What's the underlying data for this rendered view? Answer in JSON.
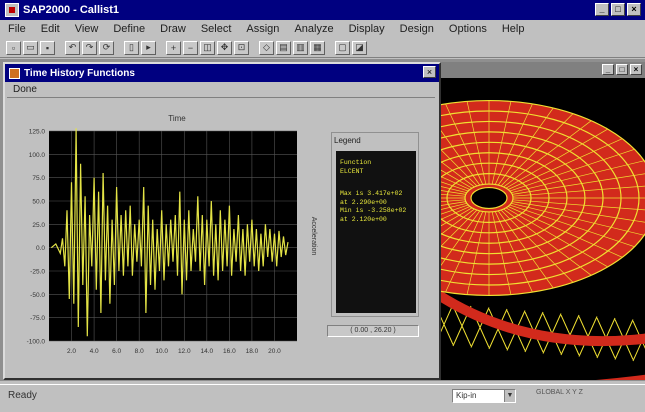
{
  "app": {
    "title": "SAP2000 - Callist1"
  },
  "menu": [
    "File",
    "Edit",
    "View",
    "Define",
    "Draw",
    "Select",
    "Assign",
    "Analyze",
    "Display",
    "Design",
    "Options",
    "Help"
  ],
  "th_window": {
    "title": "Time History Functions",
    "menu_label": "Done"
  },
  "chart_data": {
    "type": "line",
    "title": "Time",
    "xlabel": "",
    "ylabel": "Acceleration",
    "xlim": [
      0,
      22
    ],
    "ylim": [
      -100,
      125
    ],
    "x_ticks": [
      "2.0",
      "4.0",
      "6.0",
      "8.0",
      "10.0",
      "12.0",
      "14.0",
      "16.0",
      "18.0",
      "20.0"
    ],
    "y_ticks": [
      "125.0",
      "100.0",
      "75.0",
      "50.0",
      "25.0",
      "0.0",
      "-25.0",
      "-50.0",
      "-75.0",
      "-100.0"
    ],
    "grid": true,
    "series": [
      {
        "color": "#e4e446",
        "x": [
          0.2,
          0.6,
          1.0,
          1.2,
          1.4,
          1.6,
          1.8,
          2.0,
          2.2,
          2.4,
          2.6,
          2.8,
          3.0,
          3.2,
          3.4,
          3.6,
          3.8,
          4.0,
          4.2,
          4.4,
          4.6,
          4.8,
          5.0,
          5.2,
          5.4,
          5.6,
          5.8,
          6.0,
          6.2,
          6.4,
          6.6,
          6.8,
          7.0,
          7.2,
          7.4,
          7.6,
          7.8,
          8.0,
          8.2,
          8.4,
          8.6,
          8.8,
          9.0,
          9.2,
          9.4,
          9.6,
          9.8,
          10.0,
          10.2,
          10.4,
          10.6,
          10.8,
          11.0,
          11.2,
          11.4,
          11.6,
          11.8,
          12.0,
          12.2,
          12.4,
          12.6,
          12.8,
          13.0,
          13.2,
          13.4,
          13.6,
          13.8,
          14.0,
          14.2,
          14.4,
          14.6,
          14.8,
          15.0,
          15.2,
          15.4,
          15.6,
          15.8,
          16.0,
          16.2,
          16.4,
          16.6,
          16.8,
          17.0,
          17.2,
          17.4,
          17.6,
          17.8,
          18.0,
          18.2,
          18.4,
          18.6,
          18.8,
          19.0,
          19.2,
          19.4,
          19.6,
          19.8,
          20.0,
          20.2,
          20.4,
          20.6,
          20.8,
          21.0,
          21.2
        ],
        "y": [
          0,
          4,
          -6,
          10,
          -20,
          40,
          -55,
          70,
          -60,
          128,
          -85,
          90,
          -40,
          55,
          -95,
          35,
          -20,
          75,
          -45,
          60,
          -70,
          80,
          -35,
          45,
          -60,
          30,
          -40,
          65,
          -25,
          35,
          -30,
          40,
          -20,
          45,
          -30,
          25,
          -15,
          30,
          -20,
          65,
          -70,
          45,
          -40,
          30,
          -45,
          20,
          -25,
          40,
          -35,
          25,
          -20,
          30,
          -15,
          35,
          -30,
          60,
          -50,
          30,
          -35,
          40,
          -25,
          20,
          -15,
          55,
          -25,
          35,
          -40,
          30,
          -20,
          50,
          -30,
          25,
          -35,
          40,
          -25,
          30,
          -20,
          45,
          -30,
          20,
          -15,
          35,
          -25,
          20,
          -30,
          25,
          -15,
          30,
          -20,
          20,
          -25,
          15,
          -20,
          25,
          -10,
          20,
          -15,
          15,
          -20,
          18,
          -10,
          12,
          -8,
          6
        ]
      }
    ]
  },
  "legend": {
    "label": "Legend",
    "function_label": "Function",
    "function_name": "ELCENT",
    "stats": [
      "Max is 3.417e+02",
      "at 2.290e+00",
      "Min is -3.258e+02",
      "at 2.120e+00"
    ]
  },
  "coord_readout": "( 0.00 , 26.20 )",
  "status": {
    "text": "Ready",
    "units": "Kip-in",
    "right_text": "GLOBAL X Y Z"
  },
  "colors": {
    "accent_titlebar": "#000080",
    "plot_background": "#000000",
    "series_color": "#e4e446",
    "model_red": "#d22a1c",
    "model_yellow": "#f0e032"
  }
}
